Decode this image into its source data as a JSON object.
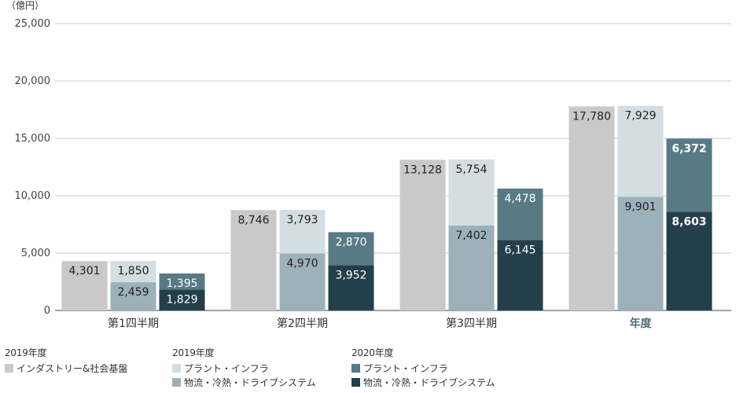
{
  "chart_data": {
    "type": "bar",
    "unit_label": "（億円）",
    "y_ticks": [
      "25,000",
      "20,000",
      "15,000",
      "10,000",
      "5,000",
      "0"
    ],
    "ylim": [
      0,
      25000
    ],
    "categories": [
      "第1四半期",
      "第2四半期",
      "第3四半期",
      "年度"
    ],
    "bars": [
      {
        "category": 0,
        "stack": [
          {
            "series": "a",
            "value": 4301,
            "label": "4,301"
          }
        ]
      },
      {
        "category": 0,
        "stack": [
          {
            "series": "b",
            "value": 2459,
            "label": "2,459"
          },
          {
            "series": "c",
            "value": 1850,
            "label": "1,850"
          }
        ]
      },
      {
        "category": 0,
        "stack": [
          {
            "series": "e",
            "value": 1829,
            "label": "1,829"
          },
          {
            "series": "d",
            "value": 1395,
            "label": "1,395"
          }
        ]
      },
      {
        "category": 1,
        "stack": [
          {
            "series": "a",
            "value": 8746,
            "label": "8,746"
          }
        ]
      },
      {
        "category": 1,
        "stack": [
          {
            "series": "b",
            "value": 4970,
            "label": "4,970"
          },
          {
            "series": "c",
            "value": 3793,
            "label": "3,793"
          }
        ]
      },
      {
        "category": 1,
        "stack": [
          {
            "series": "e",
            "value": 3952,
            "label": "3,952"
          },
          {
            "series": "d",
            "value": 2870,
            "label": "2,870"
          }
        ]
      },
      {
        "category": 2,
        "stack": [
          {
            "series": "a",
            "value": 13128,
            "label": "13,128"
          }
        ]
      },
      {
        "category": 2,
        "stack": [
          {
            "series": "b",
            "value": 7402,
            "label": "7,402"
          },
          {
            "series": "c",
            "value": 5754,
            "label": "5,754"
          }
        ]
      },
      {
        "category": 2,
        "stack": [
          {
            "series": "e",
            "value": 6145,
            "label": "6,145"
          },
          {
            "series": "d",
            "value": 4478,
            "label": "4,478"
          }
        ]
      },
      {
        "category": 3,
        "stack": [
          {
            "series": "a",
            "value": 17780,
            "label": "17,780"
          }
        ]
      },
      {
        "category": 3,
        "stack": [
          {
            "series": "b",
            "value": 9901,
            "label": "9,901"
          },
          {
            "series": "c",
            "value": 7929,
            "label": "7,929"
          }
        ]
      },
      {
        "category": 3,
        "stack": [
          {
            "series": "e",
            "value": 8603,
            "label": "8,603"
          },
          {
            "series": "d",
            "value": 6372,
            "label": "6,372"
          }
        ]
      }
    ],
    "series": [
      {
        "id": "a",
        "name": "インダストリー&社会基盤",
        "color": "#c9c9c9"
      },
      {
        "id": "b",
        "name": "物流・冷熱・ドライブシステム",
        "color": "#9cb1ba"
      },
      {
        "id": "c",
        "name": "プラント・インフラ",
        "color": "#d3dde2"
      },
      {
        "id": "d",
        "name": "プラント・インフラ",
        "color": "#587a85"
      },
      {
        "id": "e",
        "name": "物流・冷熱・ドライブシステム",
        "color": "#233f4b"
      }
    ],
    "highlight_category_color": "#4d6f7b",
    "grid": true
  },
  "legend": {
    "groups": [
      {
        "title": "2019年度",
        "items": [
          {
            "label": "インダストリー&社会基盤",
            "color": "#c9c9c9"
          }
        ]
      },
      {
        "title": "2019年度",
        "items": [
          {
            "label": "プラント・インフラ",
            "color": "#d3dde2"
          },
          {
            "label": "物流・冷熱・ドライブシステム",
            "color": "#9cb1ba"
          }
        ]
      },
      {
        "title": "2020年度",
        "items": [
          {
            "label": "プラント・インフラ",
            "color": "#587a85"
          },
          {
            "label": "物流・冷熱・ドライブシステム",
            "color": "#233f4b"
          }
        ]
      }
    ]
  }
}
